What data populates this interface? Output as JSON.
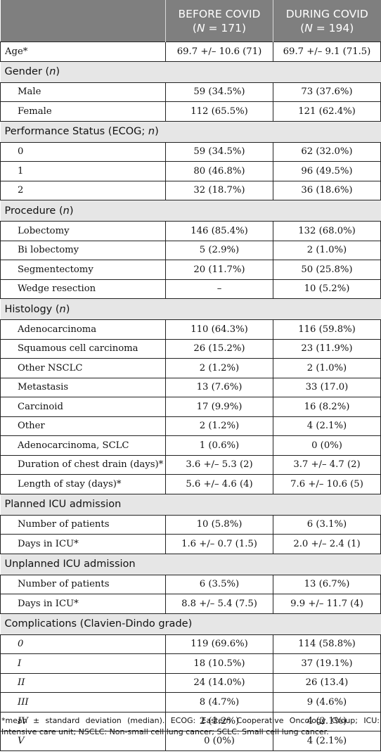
{
  "header": {
    "col_before_line1": "BEFORE COVID",
    "col_before_line2_pre": "(",
    "col_before_n": "N",
    "col_before_line2_post": " = 171)",
    "col_during_line1": "DURING COVID",
    "col_during_line2_pre": "(",
    "col_during_n": "N",
    "col_during_line2_post": " = 194)"
  },
  "age_row": {
    "label": "Age*",
    "before": "69.7 +/– 10.6 (71)",
    "during": "69.7 +/– 9.1 (71.5)"
  },
  "sections": [
    {
      "title": "Gender (",
      "title_it": "n",
      "title_end": ")",
      "rows": [
        {
          "label": "Male",
          "before": "59 (34.5%)",
          "during": "73 (37.6%)"
        },
        {
          "label": "Female",
          "before": "112 (65.5%)",
          "during": "121 (62.4%)"
        }
      ]
    },
    {
      "title": "Performance Status (ECOG; ",
      "title_it": "n",
      "title_end": ")",
      "rows": [
        {
          "label": "0",
          "before": "59 (34.5%)",
          "during": "62 (32.0%)"
        },
        {
          "label": "1",
          "before": "80 (46.8%)",
          "during": "96 (49.5%)"
        },
        {
          "label": "2",
          "before": "32 (18.7%)",
          "during": "36 (18.6%)"
        }
      ]
    },
    {
      "title": "Procedure (",
      "title_it": "n",
      "title_end": ")",
      "rows": [
        {
          "label": "Lobectomy",
          "before": "146 (85.4%)",
          "during": "132 (68.0%)"
        },
        {
          "label": "Bi lobectomy",
          "before": "5 (2.9%)",
          "during": "2 (1.0%)"
        },
        {
          "label": "Segmentectomy",
          "before": "20 (11.7%)",
          "during": "50 (25.8%)"
        },
        {
          "label": "Wedge resection",
          "before": "–",
          "during": "10 (5.2%)"
        }
      ]
    },
    {
      "title": "Histology (",
      "title_it": "n",
      "title_end": ")",
      "rows": [
        {
          "label": "Adenocarcinoma",
          "before": "110 (64.3%)",
          "during": "116 (59.8%)"
        },
        {
          "label": "Squamous cell carcinoma",
          "before": "26 (15.2%)",
          "during": "23 (11.9%)"
        },
        {
          "label": "Other NSCLC",
          "before": "2 (1.2%)",
          "during": "2 (1.0%)"
        },
        {
          "label": "Metastasis",
          "before": "13 (7.6%)",
          "during": "33 (17.0)"
        },
        {
          "label": "Carcinoid",
          "before": "17 (9.9%)",
          "during": "16 (8.2%)"
        },
        {
          "label": "Other",
          "before": "2 (1.2%)",
          "during": "4 (2.1%)"
        },
        {
          "label": "Adenocarcinoma, SCLC",
          "before": "1 (0.6%)",
          "during": "0 (0%)"
        },
        {
          "label": "Duration of chest drain (days)*",
          "before": "3.6 +/– 5.3 (2)",
          "during": "3.7 +/– 4.7 (2)"
        },
        {
          "label": "Length of stay (days)*",
          "before": "5.6 +/– 4.6 (4)",
          "during": "7.6 +/– 10.6 (5)"
        }
      ]
    },
    {
      "title": "Planned ICU admission",
      "title_it": "",
      "title_end": "",
      "rows": [
        {
          "label": "Number of patients",
          "before": "10 (5.8%)",
          "during": "6 (3.1%)"
        },
        {
          "label": "Days in ICU*",
          "before": "1.6 +/– 0.7 (1.5)",
          "during": "2.0 +/– 2.4 (1)"
        }
      ]
    },
    {
      "title": "Unplanned ICU admission",
      "title_it": "",
      "title_end": "",
      "rows": [
        {
          "label": "Number of patients",
          "before": "6 (3.5%)",
          "during": "13 (6.7%)"
        },
        {
          "label": "Days in ICU*",
          "before": "8.8 +/– 5.4 (7.5)",
          "during": "9.9 +/– 11.7 (4)"
        }
      ]
    },
    {
      "title": "Complications (Clavien-Dindo grade)",
      "title_it": "",
      "title_end": "",
      "italic_labels": true,
      "rows": [
        {
          "label": "0",
          "before": "119 (69.6%)",
          "during": "114 (58.8%)"
        },
        {
          "label": "I",
          "before": "18 (10.5%)",
          "during": "37 (19.1%)"
        },
        {
          "label": "II",
          "before": "24 (14.0%)",
          "during": "26 (13.4)"
        },
        {
          "label": "III",
          "before": "8 (4.7%)",
          "during": "9 (4.6%)"
        },
        {
          "label": "IV",
          "before": "2 (1.2%)",
          "during": "4 (2.1%)"
        },
        {
          "label": "V",
          "before": "0 (0%)",
          "during": "4 (2.1%)"
        }
      ]
    }
  ],
  "footnote": "*mean ± standard deviation (median). ECOG: Eastern Cooperative Oncology Group; ICU: Intensive care unit; NSCLC: Non-small cell lung cancer; SCLC: Small cell lung cancer."
}
